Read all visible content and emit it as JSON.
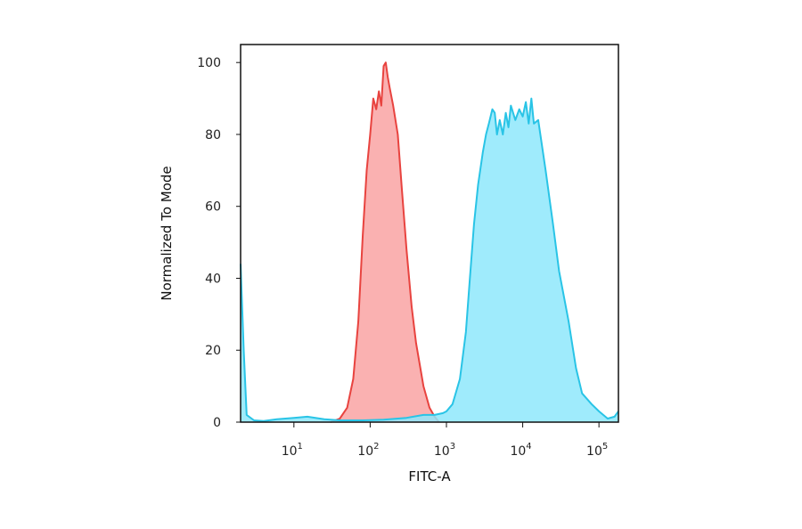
{
  "chart_data": {
    "type": "area",
    "title": "",
    "xlabel": "FITC-A",
    "ylabel": "Normalized To Mode",
    "x_scale": "log",
    "xlim": [
      2,
      180000
    ],
    "ylim": [
      0,
      105
    ],
    "x_ticks": [
      {
        "value": 10,
        "base": "10",
        "exp": "1"
      },
      {
        "value": 100,
        "base": "10",
        "exp": "2"
      },
      {
        "value": 1000,
        "base": "10",
        "exp": "3"
      },
      {
        "value": 10000,
        "base": "10",
        "exp": "4"
      },
      {
        "value": 100000,
        "base": "10",
        "exp": "5"
      }
    ],
    "y_ticks": [
      {
        "value": 0,
        "label": "0"
      },
      {
        "value": 20,
        "label": "20"
      },
      {
        "value": 40,
        "label": "40"
      },
      {
        "value": 60,
        "label": "60"
      },
      {
        "value": 80,
        "label": "80"
      },
      {
        "value": 100,
        "label": "100"
      }
    ],
    "grid": false,
    "series": [
      {
        "color": "#e8433f",
        "fill": "#f9a3a3",
        "points": [
          [
            30,
            0
          ],
          [
            40,
            1
          ],
          [
            50,
            4
          ],
          [
            60,
            12
          ],
          [
            70,
            28
          ],
          [
            80,
            52
          ],
          [
            90,
            70
          ],
          [
            100,
            80
          ],
          [
            110,
            90
          ],
          [
            120,
            87
          ],
          [
            130,
            92
          ],
          [
            140,
            88
          ],
          [
            150,
            99
          ],
          [
            160,
            100
          ],
          [
            170,
            96
          ],
          [
            180,
            93
          ],
          [
            200,
            88
          ],
          [
            230,
            80
          ],
          [
            260,
            65
          ],
          [
            300,
            48
          ],
          [
            350,
            32
          ],
          [
            400,
            22
          ],
          [
            500,
            10
          ],
          [
            600,
            4
          ],
          [
            700,
            1.5
          ],
          [
            800,
            0
          ]
        ]
      },
      {
        "color": "#29c4e6",
        "fill": "#8ee7fb",
        "points": [
          [
            2,
            44
          ],
          [
            2.2,
            20
          ],
          [
            2.4,
            2
          ],
          [
            3,
            0.5
          ],
          [
            4,
            0.3
          ],
          [
            6,
            0.8
          ],
          [
            10,
            1.2
          ],
          [
            15,
            1.5
          ],
          [
            25,
            0.8
          ],
          [
            40,
            0.5
          ],
          [
            80,
            0.5
          ],
          [
            150,
            0.7
          ],
          [
            300,
            1.2
          ],
          [
            500,
            2
          ],
          [
            700,
            2
          ],
          [
            900,
            2.5
          ],
          [
            1000,
            3
          ],
          [
            1200,
            5
          ],
          [
            1500,
            12
          ],
          [
            1800,
            25
          ],
          [
            2000,
            38
          ],
          [
            2300,
            55
          ],
          [
            2600,
            66
          ],
          [
            3000,
            75
          ],
          [
            3300,
            80
          ],
          [
            3600,
            83
          ],
          [
            4000,
            87
          ],
          [
            4300,
            86
          ],
          [
            4600,
            80
          ],
          [
            5000,
            84
          ],
          [
            5500,
            80
          ],
          [
            6000,
            86
          ],
          [
            6500,
            82
          ],
          [
            7000,
            88
          ],
          [
            8000,
            84
          ],
          [
            9000,
            87
          ],
          [
            10000,
            85
          ],
          [
            11000,
            89
          ],
          [
            12000,
            83
          ],
          [
            13000,
            90
          ],
          [
            14000,
            83
          ],
          [
            16000,
            84
          ],
          [
            20000,
            70
          ],
          [
            25000,
            55
          ],
          [
            30000,
            42
          ],
          [
            40000,
            28
          ],
          [
            50000,
            15
          ],
          [
            60000,
            8
          ],
          [
            80000,
            5
          ],
          [
            100000,
            3
          ],
          [
            130000,
            1
          ],
          [
            160000,
            1.5
          ],
          [
            180000,
            3
          ]
        ]
      }
    ]
  }
}
